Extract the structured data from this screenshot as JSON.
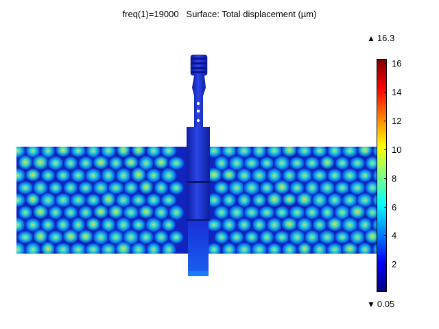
{
  "title": {
    "param": "freq(1)=19000",
    "quantity": "Surface: Total displacement (µm)"
  },
  "colorbar": {
    "max_label": "16.3",
    "min_label": "0.05",
    "max": 16.3,
    "min": 0.05,
    "ticks": [
      "16",
      "14",
      "12",
      "10",
      "8",
      "6",
      "4",
      "2"
    ],
    "tick_values": [
      16,
      14,
      12,
      10,
      8,
      6,
      4,
      2
    ],
    "colormap": [
      "#00007f",
      "#0000ff",
      "#0080ff",
      "#00ffff",
      "#80ff80",
      "#ffff00",
      "#ff8000",
      "#ff0000",
      "#7f0000"
    ],
    "max_icon": "triangle-up-icon",
    "min_icon": "triangle-down-icon"
  },
  "model": {
    "description_colors": {
      "bead_low": "#1a2fd0",
      "bead_mid": "#1ec8e0",
      "bead_high": "#a8e85a",
      "horn": "#1d2fc8"
    }
  }
}
